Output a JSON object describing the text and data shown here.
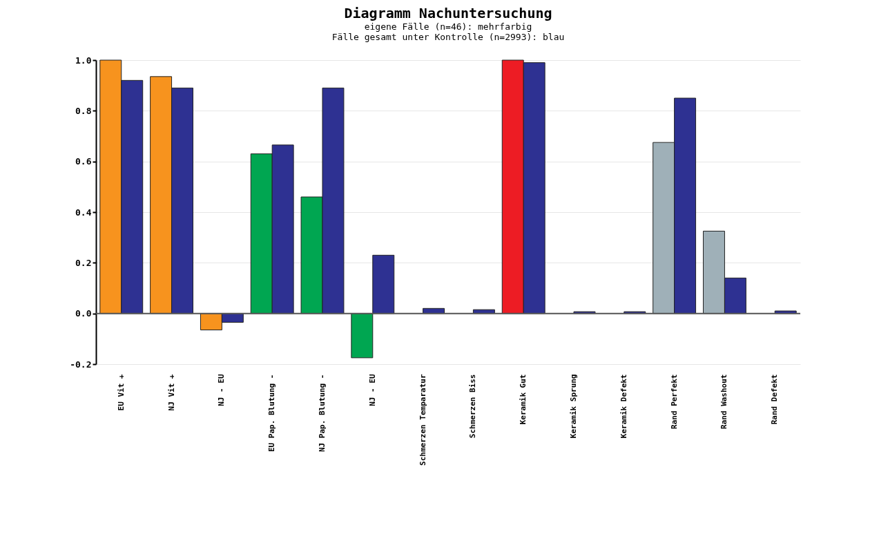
{
  "chart_data": {
    "type": "bar",
    "title": "Diagramm Nachuntersuchung",
    "subtitle": "eigene Fälle (n=46): mehrfarbig\nFälle gesamt unter Kontrolle (n=2993): blau",
    "categories": [
      "EU Vit +",
      "NJ Vit +",
      "NJ - EU",
      "EU Pap. Blutung -",
      "NJ Pap. Blutung -",
      "NJ - EU",
      "Schmerzen Temparatur",
      "Schmerzen Biss",
      "Keramik Gut",
      "Keramik Sprung",
      "Keramik Defekt",
      "Rand Perfekt",
      "Rand Washout",
      "Rand Defekt"
    ],
    "series": [
      {
        "colors": [
          "#f7931e",
          "#f7931e",
          "#f7931e",
          "#00a651",
          "#00a651",
          "#00a651",
          null,
          null,
          "#ed1c24",
          null,
          null,
          "#9fb0b8",
          "#9fb0b8",
          null
        ],
        "values": [
          1.0,
          0.935,
          -0.065,
          0.63,
          0.46,
          -0.175,
          null,
          null,
          1.0,
          null,
          null,
          0.675,
          0.325,
          null
        ]
      },
      {
        "color": "#2e3192",
        "values": [
          0.92,
          0.89,
          -0.035,
          0.665,
          0.89,
          0.23,
          0.02,
          0.015,
          0.99,
          0.007,
          0.007,
          0.85,
          0.14,
          0.01
        ]
      }
    ],
    "ylim": [
      -0.2,
      1.0
    ],
    "yticks": [
      {
        "value": -0.2,
        "label": "-0.2"
      },
      {
        "value": 0,
        "label": "0.0"
      },
      {
        "value": 0.2,
        "label": "0.2"
      },
      {
        "value": 0.4,
        "label": "0.4"
      },
      {
        "value": 0.6,
        "label": "0.6"
      },
      {
        "value": 0.8,
        "label": "0.8"
      },
      {
        "value": 1.0,
        "label": "1.0"
      }
    ],
    "grid": "y"
  }
}
